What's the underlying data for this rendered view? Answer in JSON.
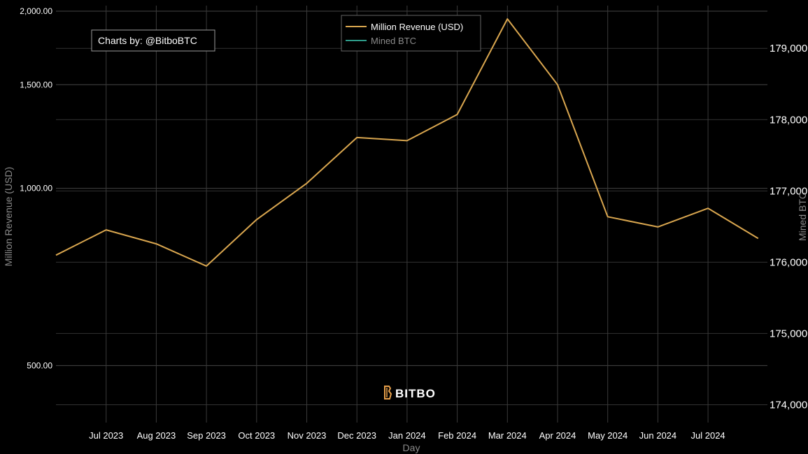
{
  "chart_data": {
    "type": "line",
    "xlabel": "Day",
    "ylabel_left": "Million Revenue (USD)",
    "ylabel_right": "Mined BTC",
    "y_left": {
      "scale": "log",
      "ticks": [
        500,
        1000,
        1500,
        2000
      ],
      "tick_labels": [
        "500.00",
        "1,000.00",
        "1,500.00",
        "2,000.00"
      ],
      "range": [
        400,
        2000
      ]
    },
    "y_right": {
      "ticks": [
        174000,
        175000,
        176000,
        177000,
        178000,
        179000
      ],
      "tick_labels": [
        "174,000",
        "175,000",
        "176,000",
        "177,000",
        "178,000",
        "179,000"
      ],
      "range": [
        173750,
        179600
      ]
    },
    "x_ticks": [
      "Jul 2023",
      "Aug 2023",
      "Sep 2023",
      "Oct 2023",
      "Nov 2023",
      "Dec 2023",
      "Jan 2024",
      "Feb 2024",
      "Mar 2024",
      "Apr 2024",
      "May 2024",
      "Jun 2024",
      "Jul 2024"
    ],
    "series": [
      {
        "name": "Million Revenue (USD)",
        "axis": "left",
        "color": "#d9a64f",
        "x": [
          "Jun 2023",
          "Jul 2023",
          "Aug 2023",
          "Sep 2023",
          "Oct 2023",
          "Nov 2023",
          "Dec 2023",
          "Jan 2024",
          "Feb 2024",
          "Mar 2024",
          "Apr 2024",
          "May 2024",
          "Jun 2024",
          "Jul 2024",
          "Aug 2024"
        ],
        "values": [
          770,
          850,
          805,
          738,
          885,
          1020,
          1220,
          1205,
          1335,
          1940,
          1500,
          895,
          860,
          925,
          822
        ]
      },
      {
        "name": "Mined BTC",
        "axis": "right",
        "color": "#2e9c8a",
        "values": []
      }
    ],
    "grid": true,
    "legend_position": "top-center"
  },
  "credit": "Charts by: @BitboBTC",
  "brand": "BITBO"
}
